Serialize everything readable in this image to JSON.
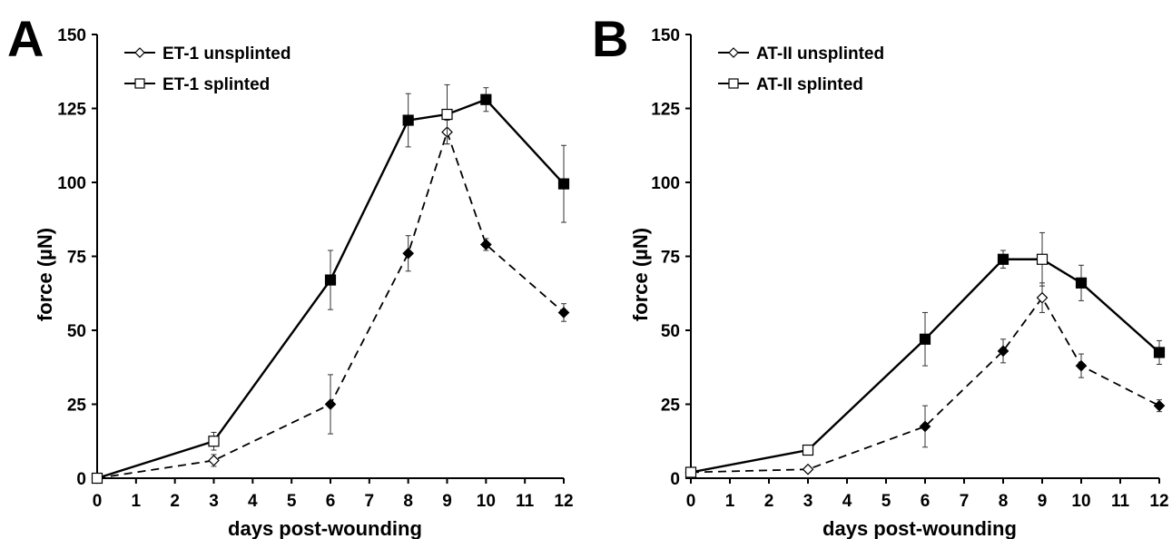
{
  "chart_data": [
    {
      "panel_label": "A",
      "type": "line",
      "xlabel": "days post-wounding",
      "ylabel": "force (µN)",
      "x": [
        0,
        3,
        6,
        8,
        9,
        10,
        12
      ],
      "xticks": [
        0,
        1,
        2,
        3,
        4,
        5,
        6,
        7,
        8,
        9,
        10,
        11,
        12
      ],
      "yticks": [
        0,
        25,
        50,
        75,
        100,
        125,
        150
      ],
      "xlim": [
        0,
        12
      ],
      "ylim": [
        0,
        150
      ],
      "legend_position": "top-left",
      "grid": false,
      "series": [
        {
          "name": "ET-1 unsplinted",
          "line_style": "dashed",
          "marker": "diamond",
          "values": [
            0,
            6,
            25,
            76,
            117,
            79,
            56
          ],
          "errors": [
            0,
            2,
            10,
            6,
            4,
            2,
            3
          ],
          "filled": [
            false,
            false,
            true,
            true,
            false,
            true,
            true
          ]
        },
        {
          "name": "ET-1 splinted",
          "line_style": "solid",
          "marker": "square",
          "values": [
            0,
            12.5,
            67,
            121,
            123,
            128,
            99.5
          ],
          "errors": [
            0,
            3,
            10,
            9,
            10,
            4,
            13
          ],
          "filled": [
            false,
            false,
            true,
            true,
            false,
            true,
            true
          ]
        }
      ]
    },
    {
      "panel_label": "B",
      "type": "line",
      "xlabel": "days post-wounding",
      "ylabel": "force (µN)",
      "x": [
        0,
        3,
        6,
        8,
        9,
        10,
        12
      ],
      "xticks": [
        0,
        1,
        2,
        3,
        4,
        5,
        6,
        7,
        8,
        9,
        10,
        11,
        12
      ],
      "yticks": [
        0,
        25,
        50,
        75,
        100,
        125,
        150
      ],
      "xlim": [
        0,
        12
      ],
      "ylim": [
        0,
        150
      ],
      "legend_position": "top-left",
      "grid": false,
      "series": [
        {
          "name": "AT-II unsplinted",
          "line_style": "dashed",
          "marker": "diamond",
          "values": [
            2,
            3,
            17.5,
            43,
            61,
            38,
            24.5
          ],
          "errors": [
            0,
            1,
            7,
            4,
            5,
            4,
            2
          ],
          "filled": [
            false,
            false,
            true,
            true,
            false,
            true,
            true
          ]
        },
        {
          "name": "AT-II splinted",
          "line_style": "solid",
          "marker": "square",
          "values": [
            2,
            9.5,
            47,
            74,
            74,
            66,
            42.5
          ],
          "errors": [
            0,
            1,
            9,
            3,
            9,
            6,
            4
          ],
          "filled": [
            false,
            false,
            true,
            true,
            false,
            true,
            true
          ]
        }
      ]
    }
  ]
}
